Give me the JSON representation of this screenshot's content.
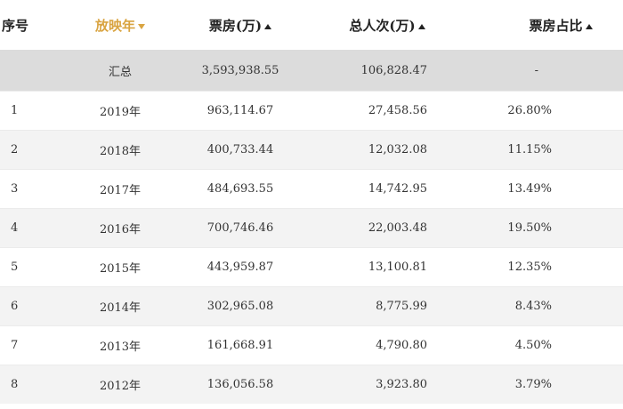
{
  "colors": {
    "accent": "#d9a441",
    "summary_bg": "#dcdcdc",
    "alt_row_bg": "#f3f3f3"
  },
  "header": {
    "index": "序号",
    "year": "放映年",
    "box_office": "票房(万)",
    "audience": "总人次(万)",
    "share": "票房占比",
    "year_sort_icon": "caret-down-icon",
    "sort_icon": "caret-up-icon"
  },
  "summary": {
    "label": "汇总",
    "box_office": "3,593,938.55",
    "audience": "106,828.47",
    "share": "-"
  },
  "rows": [
    {
      "index": "1",
      "year": "2019年",
      "box_office": "963,114.67",
      "audience": "27,458.56",
      "share": "26.80%"
    },
    {
      "index": "2",
      "year": "2018年",
      "box_office": "400,733.44",
      "audience": "12,032.08",
      "share": "11.15%"
    },
    {
      "index": "3",
      "year": "2017年",
      "box_office": "484,693.55",
      "audience": "14,742.95",
      "share": "13.49%"
    },
    {
      "index": "4",
      "year": "2016年",
      "box_office": "700,746.46",
      "audience": "22,003.48",
      "share": "19.50%"
    },
    {
      "index": "5",
      "year": "2015年",
      "box_office": "443,959.87",
      "audience": "13,100.81",
      "share": "12.35%"
    },
    {
      "index": "6",
      "year": "2014年",
      "box_office": "302,965.08",
      "audience": "8,775.99",
      "share": "8.43%"
    },
    {
      "index": "7",
      "year": "2013年",
      "box_office": "161,668.91",
      "audience": "4,790.80",
      "share": "4.50%"
    },
    {
      "index": "8",
      "year": "2012年",
      "box_office": "136,056.58",
      "audience": "3,923.80",
      "share": "3.79%"
    }
  ]
}
